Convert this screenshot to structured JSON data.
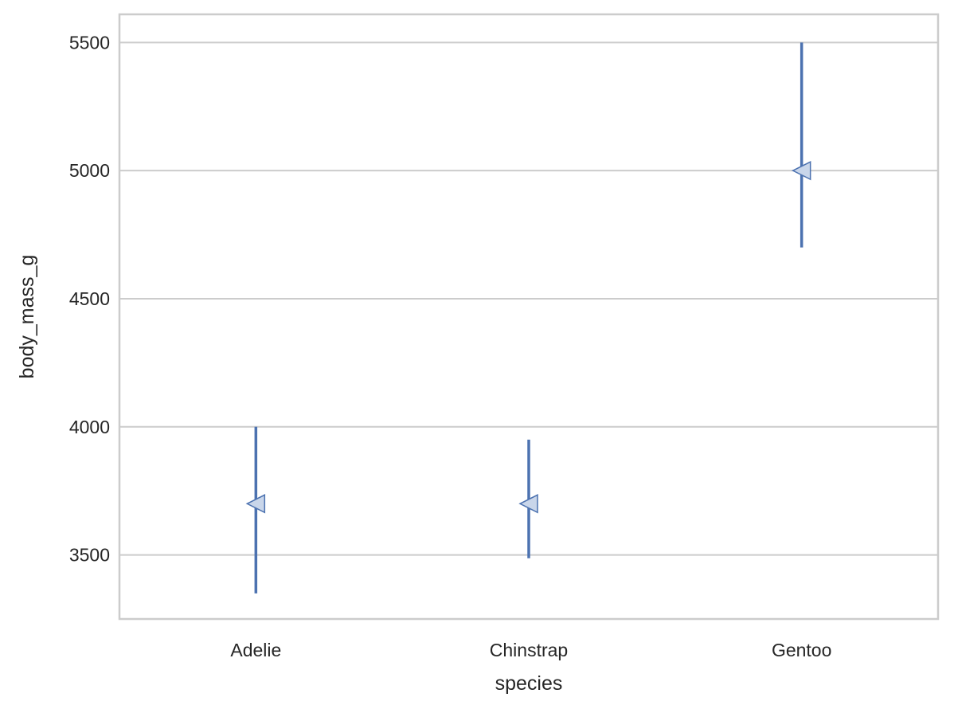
{
  "chart_data": {
    "type": "scatter",
    "title": "",
    "xlabel": "species",
    "ylabel": "body_mass_g",
    "categories": [
      "Adelie",
      "Chinstrap",
      "Gentoo"
    ],
    "series": [
      {
        "values": [
          3700,
          3700,
          5000
        ],
        "error_low": [
          3350,
          3487,
          4700
        ],
        "error_high": [
          4000,
          3950,
          5500
        ],
        "marker": "triangle-left",
        "color": "#4c72b0",
        "fill": "#c9d6ea"
      }
    ],
    "yticks": [
      3500,
      4000,
      4500,
      5000,
      5500
    ],
    "ylim": [
      3250,
      5610
    ],
    "grid": true
  }
}
